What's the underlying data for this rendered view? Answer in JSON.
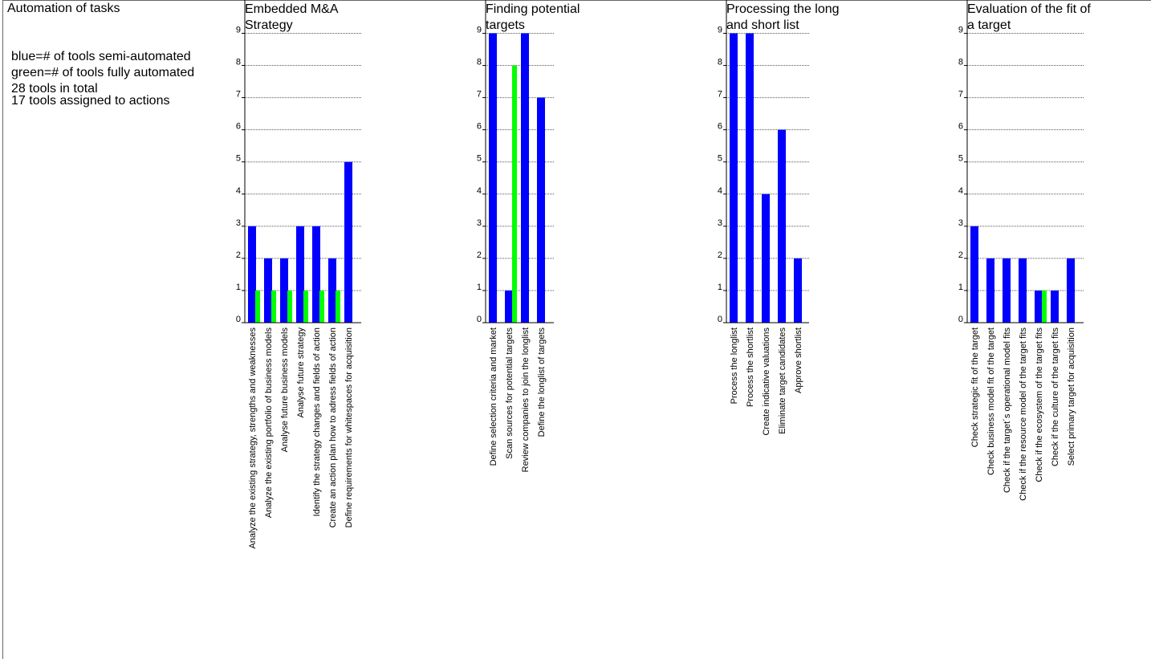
{
  "page": {
    "title": "Automation of tasks",
    "legend": {
      "blue": "blue=# of tools semi-automated",
      "green": "green=# of tools fully automated",
      "total": "28 tools in total",
      "assigned": "17 tools assigned to actions"
    }
  },
  "chart_data": [
    {
      "type": "bar",
      "title": "Embedded M&A Strategy",
      "categories": [
        "Analyze the existing strategy, strengths and weaknesses",
        "Analyze the existing portfolio of business models",
        "Analyse future business models",
        "Analyse future strategy",
        "Identify the strategy changes and fields of action",
        "Create an action plan how to adress  fields of action",
        "Define requirements for whitespaces for acquisition"
      ],
      "series": [
        {
          "name": "semi-automated",
          "color": "#0000ff",
          "values": [
            3,
            2,
            2,
            3,
            3,
            2,
            5
          ]
        },
        {
          "name": "fully automated",
          "color": "#00ff00",
          "values": [
            1,
            1,
            1,
            1,
            1,
            1,
            0
          ]
        }
      ],
      "ylim": [
        0,
        9
      ],
      "yticks": [
        "0",
        "1",
        "2",
        "3",
        "4",
        "5",
        "6",
        "7",
        "8",
        "9"
      ],
      "grid": true
    },
    {
      "type": "bar",
      "title": "Finding potential targets",
      "categories": [
        "Define selection criteria and market",
        "Scan sources for potential targets",
        "Review companies to join the longlist",
        "Define the longlist of targets"
      ],
      "series": [
        {
          "name": "semi-automated",
          "color": "#0000ff",
          "values": [
            9,
            1,
            9,
            7
          ]
        },
        {
          "name": "fully automated",
          "color": "#00ff00",
          "values": [
            0,
            8,
            0,
            0
          ]
        }
      ],
      "ylim": [
        0,
        9
      ],
      "yticks": [
        "0",
        "1",
        "2",
        "3",
        "4",
        "5",
        "6",
        "7",
        "8",
        "9"
      ],
      "grid": true
    },
    {
      "type": "bar",
      "title": "Processing the long and short list",
      "categories": [
        "Process the longlist",
        "Process the shortlist",
        "Create indicative valuations",
        "Eliminate target candidates",
        "Approve shortlist"
      ],
      "series": [
        {
          "name": "semi-automated",
          "color": "#0000ff",
          "values": [
            9,
            9,
            4,
            6,
            2
          ]
        },
        {
          "name": "fully automated",
          "color": "#00ff00",
          "values": [
            0,
            0,
            0,
            0,
            0
          ]
        }
      ],
      "ylim": [
        0,
        9
      ],
      "yticks": [
        "0",
        "1",
        "2",
        "3",
        "4",
        "5",
        "6",
        "7",
        "8",
        "9"
      ],
      "grid": true
    },
    {
      "type": "bar",
      "title": "Evaluation of the fit of a target",
      "categories": [
        "Check strategic fit of the target",
        "Check business model fit of the target",
        "Check if the target´s operational model fits",
        "Check if the resource model of the target fits",
        "Check if the ecosystem of the target fits",
        "Check if the culture of the target fits",
        "Select primary target for acquisition"
      ],
      "series": [
        {
          "name": "semi-automated",
          "color": "#0000ff",
          "values": [
            3,
            2,
            2,
            2,
            1,
            1,
            2
          ]
        },
        {
          "name": "fully automated",
          "color": "#00ff00",
          "values": [
            0,
            0,
            0,
            0,
            1,
            0,
            0
          ]
        }
      ],
      "ylim": [
        0,
        9
      ],
      "yticks": [
        "0",
        "1",
        "2",
        "3",
        "4",
        "5",
        "6",
        "7",
        "8",
        "9"
      ],
      "grid": true
    }
  ]
}
